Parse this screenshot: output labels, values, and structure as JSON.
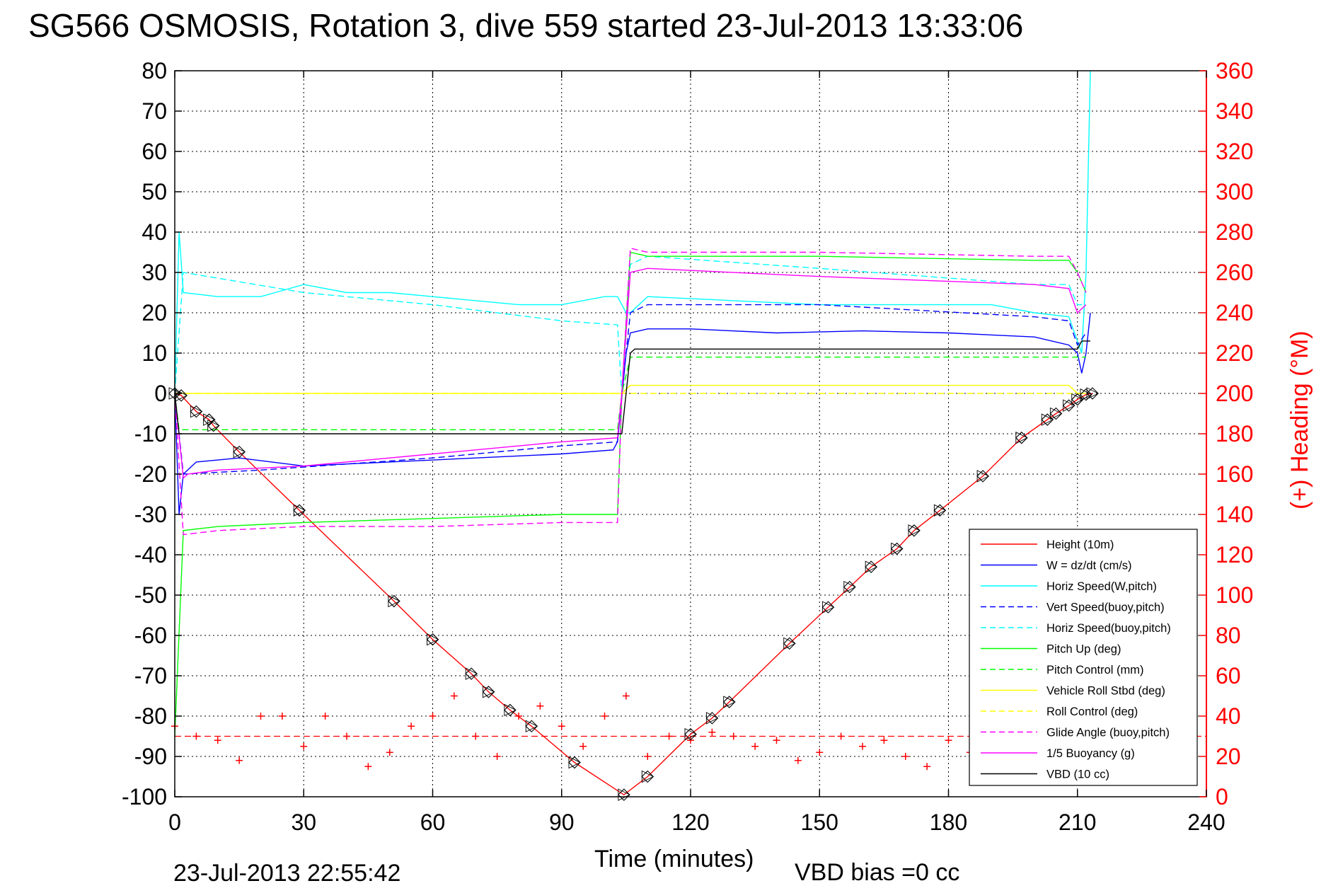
{
  "chart_data": {
    "type": "line",
    "title": "SG566 OSMOSIS, Rotation 3, dive 559 started 23-Jul-2013 13:33:06",
    "xlabel": "Time (minutes)",
    "ylabel_right": "(+) Heading (°M)",
    "xlim": [
      0,
      240
    ],
    "ylim": [
      -100,
      80
    ],
    "ylim_right": [
      0,
      360
    ],
    "x_ticks": [
      0,
      30,
      60,
      90,
      120,
      150,
      180,
      210,
      240
    ],
    "y_ticks": [
      80,
      70,
      60,
      50,
      40,
      30,
      20,
      10,
      0,
      -10,
      -20,
      -30,
      -40,
      -50,
      -60,
      -70,
      -80,
      -90,
      -100
    ],
    "y_ticks_right": [
      360,
      340,
      320,
      300,
      280,
      260,
      240,
      220,
      200,
      180,
      160,
      140,
      120,
      100,
      80,
      60,
      40,
      20,
      0
    ],
    "grid": true,
    "legend_position": "bottom-right",
    "footer_left": "23-Jul-2013 22:55:42",
    "footer_right": "VBD bias =0 cc",
    "series": [
      {
        "name": "Height (10m)",
        "color": "#ff0000",
        "style": "solid",
        "x": [
          0,
          1.5,
          5,
          8,
          9,
          15,
          29,
          51,
          60,
          69,
          73,
          78,
          83,
          93,
          104.5,
          110,
          120,
          125,
          129,
          143,
          152,
          157,
          162,
          168,
          172,
          178,
          188,
          197,
          203,
          205,
          208,
          210,
          212,
          213.5
        ],
        "y": [
          0,
          -0.5,
          -4.5,
          -6.5,
          -8,
          -14.5,
          -29,
          -51.5,
          -61,
          -69.5,
          -74,
          -78.5,
          -82.5,
          -91.5,
          -99.5,
          -95,
          -84.5,
          -80.5,
          -76.5,
          -62,
          -53,
          -48,
          -43,
          -38.5,
          -34,
          -29,
          -20.5,
          -11,
          -6.5,
          -5,
          -3,
          -1.5,
          -0.3,
          0
        ]
      },
      {
        "name": "W = dz/dt (cm/s)",
        "color": "#0000ff",
        "style": "solid",
        "x": [
          0,
          1,
          2,
          5,
          15,
          30,
          50,
          70,
          90,
          102,
          103,
          105,
          106,
          110,
          120,
          140,
          160,
          180,
          200,
          208,
          210,
          211,
          212,
          213
        ],
        "y": [
          0,
          -30,
          -20,
          -17,
          -16,
          -18,
          -17,
          -16,
          -15,
          -14,
          -12,
          10,
          15,
          16,
          16,
          15,
          15.5,
          15,
          14,
          12,
          10,
          5,
          10,
          20
        ]
      },
      {
        "name": "Horiz Speed(W,pitch)",
        "color": "#00ffff",
        "style": "solid",
        "x": [
          0,
          1,
          2,
          10,
          20,
          30,
          40,
          50,
          60,
          70,
          80,
          90,
          100,
          103,
          105,
          106,
          110,
          130,
          150,
          170,
          190,
          200,
          208,
          211,
          212,
          213
        ],
        "y": [
          0,
          40,
          25,
          24,
          24,
          27,
          25,
          25,
          24,
          23,
          22,
          22,
          24,
          24,
          20,
          20,
          24,
          23,
          22,
          22,
          22,
          20,
          19,
          10,
          30,
          80
        ]
      },
      {
        "name": "Vert Speed(buoy,pitch)",
        "color": "#0000ff",
        "style": "dashed",
        "x": [
          0,
          2,
          20,
          60,
          90,
          103,
          104,
          106,
          110,
          150,
          200,
          208,
          210,
          212
        ],
        "y": [
          0,
          -20,
          -19,
          -16,
          -13,
          -12,
          0,
          20,
          22,
          22,
          19,
          18,
          12,
          15
        ]
      },
      {
        "name": "Horiz Speed(buoy,pitch)",
        "color": "#00ffff",
        "style": "dashed",
        "x": [
          0,
          2,
          30,
          60,
          90,
          103,
          104,
          106,
          110,
          150,
          200,
          208,
          210,
          212
        ],
        "y": [
          0,
          30,
          25,
          22,
          18,
          17,
          0,
          32,
          34,
          31,
          27,
          27,
          22,
          22
        ]
      },
      {
        "name": "Pitch Up (deg)",
        "color": "#00ff00",
        "style": "solid",
        "x": [
          0,
          2,
          10,
          30,
          60,
          90,
          103,
          104,
          106,
          110,
          150,
          200,
          208,
          210,
          212
        ],
        "y": [
          -85,
          -34,
          -33,
          -32,
          -31,
          -30,
          -30,
          0,
          35,
          34,
          34,
          33,
          33,
          30,
          25
        ]
      },
      {
        "name": "Pitch Control (mm)",
        "color": "#00ff00",
        "style": "dashed",
        "x": [
          0,
          1,
          10,
          60,
          100,
          103,
          104,
          106,
          110,
          150,
          200,
          210,
          212
        ],
        "y": [
          0,
          -9,
          -9,
          -9,
          -9,
          -9,
          0,
          9,
          9,
          9,
          9,
          9,
          9
        ]
      },
      {
        "name": "Vehicle Roll Stbd (deg)",
        "color": "#ffff00",
        "style": "solid",
        "x": [
          0,
          2,
          20,
          40,
          60,
          80,
          100,
          103,
          104,
          106,
          110,
          150,
          200,
          208,
          210,
          212
        ],
        "y": [
          0,
          0,
          0,
          0,
          0,
          0,
          0,
          0,
          0,
          2,
          2,
          2,
          2,
          2,
          0,
          0
        ]
      },
      {
        "name": "Roll Control (deg)",
        "color": "#ffff00",
        "style": "dashed",
        "x": [
          0,
          10,
          50,
          100,
          104,
          106,
          150,
          210,
          212
        ],
        "y": [
          0,
          0,
          0,
          0,
          0,
          0,
          0,
          0,
          0
        ]
      },
      {
        "name": "Glide Angle (buoy,pitch)",
        "color": "#ff00ff",
        "style": "dashed",
        "x": [
          0,
          2,
          10,
          30,
          60,
          90,
          103,
          104,
          106,
          110,
          150,
          200,
          208,
          210,
          212
        ],
        "y": [
          0,
          -35,
          -34,
          -33,
          -33,
          -32,
          -32,
          0,
          36,
          35,
          35,
          34,
          34,
          30,
          25
        ]
      },
      {
        "name": "1/5 Buoyancy (g)",
        "color": "#ff00ff",
        "style": "solid",
        "x": [
          0,
          2,
          3,
          10,
          30,
          60,
          90,
          103,
          104,
          106,
          110,
          150,
          200,
          208,
          210,
          212
        ],
        "y": [
          0,
          -21,
          -20,
          -19,
          -18,
          -15,
          -12,
          -11,
          0,
          30,
          31,
          29,
          27,
          26,
          20,
          22
        ]
      },
      {
        "name": "VBD (10 cc)",
        "color": "#000000",
        "style": "solid",
        "x": [
          0,
          1,
          2,
          103,
          104,
          106,
          107,
          210,
          211,
          213
        ],
        "y": [
          0,
          -10,
          -10,
          -10,
          -10,
          10,
          11,
          11,
          13,
          13
        ]
      }
    ],
    "heading_mean_deg": 30,
    "heading_approx": {
      "x": [
        0,
        5,
        10,
        15,
        20,
        25,
        30,
        35,
        40,
        45,
        50,
        55,
        60,
        65,
        70,
        75,
        80,
        85,
        90,
        95,
        100,
        105,
        110,
        115,
        120,
        125,
        130,
        135,
        140,
        145,
        150,
        155,
        160,
        165,
        170,
        175,
        180,
        185,
        190
      ],
      "deg": [
        35,
        30,
        28,
        18,
        40,
        40,
        25,
        40,
        30,
        15,
        22,
        35,
        40,
        50,
        30,
        20,
        40,
        45,
        35,
        25,
        40,
        50,
        20,
        30,
        28,
        32,
        30,
        25,
        28,
        18,
        22,
        30,
        25,
        28,
        20,
        15,
        28,
        22,
        20
      ]
    }
  }
}
